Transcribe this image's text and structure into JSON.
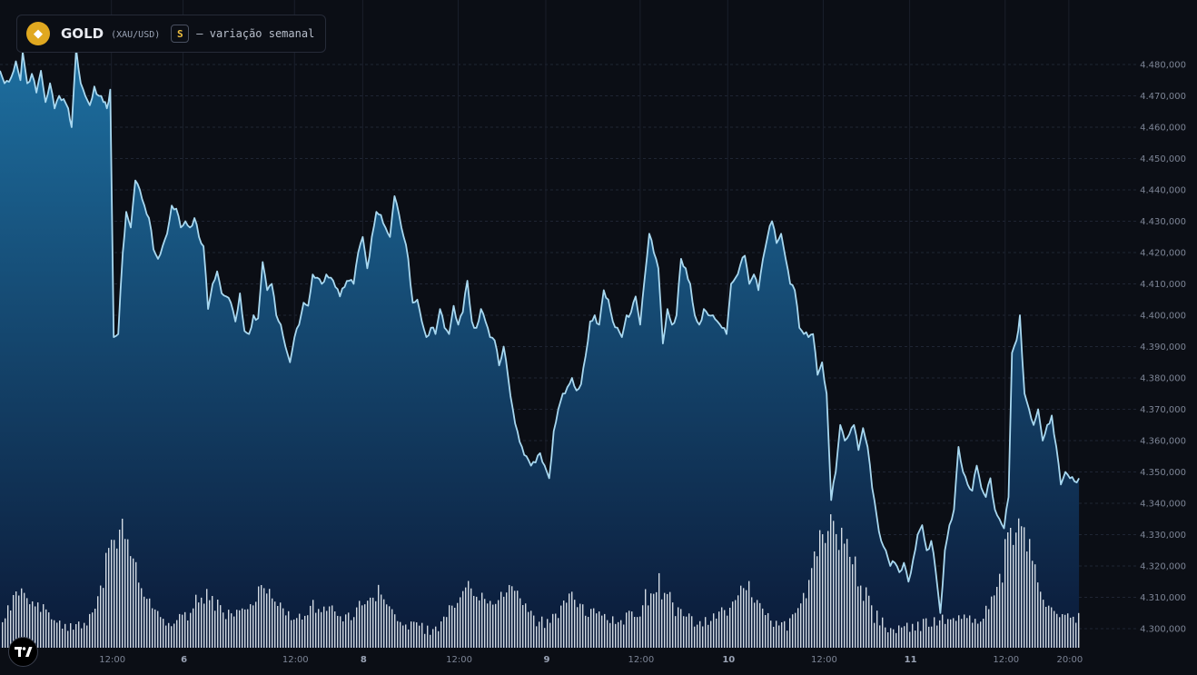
{
  "header": {
    "symbol": "GOLD",
    "pair": "(XAU/USD)",
    "badge": "S",
    "description": "— variação semanal",
    "coin_icon": "diamond-icon",
    "logo_icon": "tradingview-logo-icon"
  },
  "colors": {
    "background": "#0b0e15",
    "line": "#a8d8f0",
    "area_top": "#1d6fa0",
    "area_bottom": "#0b1a38",
    "volume": "#e8eef5",
    "coin": "#e0a820"
  },
  "chart_data": {
    "type": "area",
    "title": "",
    "xlabel": "",
    "ylabel": "",
    "ylim": [
      4295000,
      4485000
    ],
    "y_ticks": [
      4480000,
      4470000,
      4460000,
      4450000,
      4440000,
      4430000,
      4420000,
      4410000,
      4400000,
      4390000,
      4380000,
      4370000,
      4360000,
      4350000,
      4340000,
      4330000,
      4320000,
      4310000,
      4300000
    ],
    "y_tick_labels": [
      "4.480,000",
      "4.470,000",
      "4.460,000",
      "4.450,000",
      "4.440,000",
      "4.430,000",
      "4.420,000",
      "4.410,000",
      "4.400,000",
      "4.390,000",
      "4.380,000",
      "4.370,000",
      "4.360,000",
      "4.350,000",
      "4.340,000",
      "4.330,000",
      "4.320,000",
      "4.310,000",
      "4.300,000"
    ],
    "x_ticks": [
      {
        "label": "12:00",
        "t": 0.098,
        "bold": false
      },
      {
        "label": "6",
        "t": 0.161,
        "bold": true
      },
      {
        "label": "12:00",
        "t": 0.259,
        "bold": false
      },
      {
        "label": "8",
        "t": 0.319,
        "bold": true
      },
      {
        "label": "12:00",
        "t": 0.403,
        "bold": false
      },
      {
        "label": "9",
        "t": 0.48,
        "bold": true
      },
      {
        "label": "12:00",
        "t": 0.563,
        "bold": false
      },
      {
        "label": "10",
        "t": 0.64,
        "bold": true
      },
      {
        "label": "12:00",
        "t": 0.724,
        "bold": false
      },
      {
        "label": "11",
        "t": 0.8,
        "bold": true
      },
      {
        "label": "12:00",
        "t": 0.884,
        "bold": false
      },
      {
        "label": "20:00",
        "t": 0.94,
        "bold": false
      }
    ],
    "series": [
      {
        "name": "",
        "anchors": [
          [
            0.0,
            4478000
          ],
          [
            0.004,
            4474000
          ],
          [
            0.01,
            4476000
          ],
          [
            0.014,
            4481000
          ],
          [
            0.018,
            4475000
          ],
          [
            0.02,
            4484000
          ],
          [
            0.024,
            4474000
          ],
          [
            0.028,
            4477000
          ],
          [
            0.032,
            4471000
          ],
          [
            0.036,
            4478000
          ],
          [
            0.04,
            4468000
          ],
          [
            0.044,
            4474000
          ],
          [
            0.048,
            4466000
          ],
          [
            0.052,
            4470000
          ],
          [
            0.056,
            4469000
          ],
          [
            0.06,
            4466000
          ],
          [
            0.063,
            4460000
          ],
          [
            0.067,
            4485000
          ],
          [
            0.071,
            4474000
          ],
          [
            0.075,
            4470000
          ],
          [
            0.079,
            4467000
          ],
          [
            0.083,
            4473000
          ],
          [
            0.087,
            4470000
          ],
          [
            0.091,
            4468000
          ],
          [
            0.094,
            4466000
          ],
          [
            0.097,
            4472000
          ],
          [
            0.1,
            4393000
          ],
          [
            0.104,
            4394000
          ],
          [
            0.108,
            4420000
          ],
          [
            0.111,
            4433000
          ],
          [
            0.115,
            4428000
          ],
          [
            0.119,
            4443000
          ],
          [
            0.123,
            4440000
          ],
          [
            0.127,
            4435000
          ],
          [
            0.131,
            4431000
          ],
          [
            0.135,
            4421000
          ],
          [
            0.139,
            4418000
          ],
          [
            0.143,
            4422000
          ],
          [
            0.147,
            4426000
          ],
          [
            0.151,
            4435000
          ],
          [
            0.155,
            4434000
          ],
          [
            0.159,
            4428000
          ],
          [
            0.163,
            4430000
          ],
          [
            0.167,
            4428000
          ],
          [
            0.171,
            4431000
          ],
          [
            0.175,
            4425000
          ],
          [
            0.179,
            4422000
          ],
          [
            0.183,
            4402000
          ],
          [
            0.187,
            4410000
          ],
          [
            0.191,
            4414000
          ],
          [
            0.195,
            4407000
          ],
          [
            0.199,
            4406000
          ],
          [
            0.203,
            4404000
          ],
          [
            0.207,
            4398000
          ],
          [
            0.211,
            4407000
          ],
          [
            0.215,
            4395000
          ],
          [
            0.219,
            4394000
          ],
          [
            0.223,
            4400000
          ],
          [
            0.227,
            4399000
          ],
          [
            0.231,
            4417000
          ],
          [
            0.235,
            4408000
          ],
          [
            0.239,
            4410000
          ],
          [
            0.243,
            4400000
          ],
          [
            0.247,
            4397000
          ],
          [
            0.251,
            4390000
          ],
          [
            0.255,
            4385000
          ],
          [
            0.259,
            4393000
          ],
          [
            0.263,
            4397000
          ],
          [
            0.267,
            4404000
          ],
          [
            0.271,
            4403000
          ],
          [
            0.275,
            4413000
          ],
          [
            0.279,
            4412000
          ],
          [
            0.283,
            4410000
          ],
          [
            0.287,
            4413000
          ],
          [
            0.291,
            4412000
          ],
          [
            0.295,
            4409000
          ],
          [
            0.299,
            4406000
          ],
          [
            0.303,
            4409000
          ],
          [
            0.307,
            4411000
          ],
          [
            0.311,
            4410000
          ],
          [
            0.315,
            4420000
          ],
          [
            0.319,
            4425000
          ],
          [
            0.323,
            4415000
          ],
          [
            0.327,
            4425000
          ],
          [
            0.331,
            4433000
          ],
          [
            0.335,
            4432000
          ],
          [
            0.339,
            4428000
          ],
          [
            0.343,
            4425000
          ],
          [
            0.347,
            4438000
          ],
          [
            0.351,
            4432000
          ],
          [
            0.355,
            4425000
          ],
          [
            0.359,
            4418000
          ],
          [
            0.363,
            4404000
          ],
          [
            0.367,
            4405000
          ],
          [
            0.371,
            4398000
          ],
          [
            0.375,
            4393000
          ],
          [
            0.379,
            4396000
          ],
          [
            0.383,
            4394000
          ],
          [
            0.387,
            4402000
          ],
          [
            0.391,
            4396000
          ],
          [
            0.395,
            4394000
          ],
          [
            0.399,
            4403000
          ],
          [
            0.403,
            4397000
          ],
          [
            0.407,
            4401000
          ],
          [
            0.411,
            4411000
          ],
          [
            0.415,
            4398000
          ],
          [
            0.419,
            4396000
          ],
          [
            0.423,
            4402000
          ],
          [
            0.427,
            4398000
          ],
          [
            0.431,
            4393000
          ],
          [
            0.435,
            4392000
          ],
          [
            0.439,
            4384000
          ],
          [
            0.443,
            4390000
          ],
          [
            0.447,
            4380000
          ],
          [
            0.451,
            4370000
          ],
          [
            0.455,
            4363000
          ],
          [
            0.459,
            4358000
          ],
          [
            0.463,
            4355000
          ],
          [
            0.467,
            4352000
          ],
          [
            0.471,
            4353000
          ],
          [
            0.475,
            4356000
          ],
          [
            0.479,
            4352000
          ],
          [
            0.483,
            4348000
          ],
          [
            0.487,
            4363000
          ],
          [
            0.491,
            4370000
          ],
          [
            0.495,
            4375000
          ],
          [
            0.499,
            4377000
          ],
          [
            0.503,
            4380000
          ],
          [
            0.507,
            4376000
          ],
          [
            0.511,
            4378000
          ],
          [
            0.515,
            4387000
          ],
          [
            0.519,
            4398000
          ],
          [
            0.523,
            4400000
          ],
          [
            0.527,
            4397000
          ],
          [
            0.531,
            4408000
          ],
          [
            0.535,
            4405000
          ],
          [
            0.539,
            4398000
          ],
          [
            0.543,
            4396000
          ],
          [
            0.547,
            4393000
          ],
          [
            0.551,
            4400000
          ],
          [
            0.555,
            4401000
          ],
          [
            0.559,
            4406000
          ],
          [
            0.563,
            4397000
          ],
          [
            0.567,
            4412000
          ],
          [
            0.571,
            4426000
          ],
          [
            0.575,
            4420000
          ],
          [
            0.579,
            4415000
          ],
          [
            0.583,
            4391000
          ],
          [
            0.587,
            4402000
          ],
          [
            0.591,
            4397000
          ],
          [
            0.595,
            4400000
          ],
          [
            0.599,
            4418000
          ],
          [
            0.603,
            4415000
          ],
          [
            0.607,
            4410000
          ],
          [
            0.611,
            4400000
          ],
          [
            0.615,
            4397000
          ],
          [
            0.619,
            4402000
          ],
          [
            0.623,
            4400000
          ],
          [
            0.627,
            4400000
          ],
          [
            0.631,
            4398000
          ],
          [
            0.635,
            4396000
          ],
          [
            0.639,
            4394000
          ],
          [
            0.643,
            4410000
          ],
          [
            0.647,
            4412000
          ],
          [
            0.651,
            4416000
          ],
          [
            0.655,
            4419000
          ],
          [
            0.659,
            4410000
          ],
          [
            0.663,
            4413000
          ],
          [
            0.667,
            4408000
          ],
          [
            0.671,
            4418000
          ],
          [
            0.675,
            4425000
          ],
          [
            0.679,
            4430000
          ],
          [
            0.683,
            4423000
          ],
          [
            0.687,
            4426000
          ],
          [
            0.691,
            4418000
          ],
          [
            0.695,
            4410000
          ],
          [
            0.699,
            4408000
          ],
          [
            0.703,
            4396000
          ],
          [
            0.707,
            4394000
          ],
          [
            0.711,
            4393000
          ],
          [
            0.715,
            4394000
          ],
          [
            0.719,
            4381000
          ],
          [
            0.723,
            4385000
          ],
          [
            0.727,
            4375000
          ],
          [
            0.731,
            4341000
          ],
          [
            0.735,
            4350000
          ],
          [
            0.739,
            4365000
          ],
          [
            0.743,
            4360000
          ],
          [
            0.747,
            4362000
          ],
          [
            0.751,
            4365000
          ],
          [
            0.755,
            4357000
          ],
          [
            0.759,
            4364000
          ],
          [
            0.763,
            4358000
          ],
          [
            0.767,
            4345000
          ],
          [
            0.771,
            4336000
          ],
          [
            0.775,
            4328000
          ],
          [
            0.779,
            4325000
          ],
          [
            0.783,
            4320000
          ],
          [
            0.787,
            4321000
          ],
          [
            0.791,
            4318000
          ],
          [
            0.795,
            4321000
          ],
          [
            0.799,
            4315000
          ],
          [
            0.803,
            4322000
          ],
          [
            0.807,
            4330000
          ],
          [
            0.811,
            4333000
          ],
          [
            0.815,
            4325000
          ],
          [
            0.819,
            4328000
          ],
          [
            0.823,
            4318000
          ],
          [
            0.827,
            4305000
          ],
          [
            0.831,
            4325000
          ],
          [
            0.835,
            4333000
          ],
          [
            0.839,
            4338000
          ],
          [
            0.843,
            4358000
          ],
          [
            0.847,
            4350000
          ],
          [
            0.851,
            4346000
          ],
          [
            0.855,
            4344000
          ],
          [
            0.859,
            4352000
          ],
          [
            0.863,
            4345000
          ],
          [
            0.867,
            4342000
          ],
          [
            0.871,
            4348000
          ],
          [
            0.875,
            4338000
          ],
          [
            0.879,
            4335000
          ],
          [
            0.883,
            4332000
          ],
          [
            0.887,
            4342000
          ],
          [
            0.89,
            4388000
          ],
          [
            0.894,
            4392000
          ],
          [
            0.897,
            4400000
          ],
          [
            0.901,
            4375000
          ],
          [
            0.905,
            4370000
          ],
          [
            0.909,
            4365000
          ],
          [
            0.913,
            4370000
          ],
          [
            0.917,
            4360000
          ],
          [
            0.921,
            4365000
          ],
          [
            0.925,
            4368000
          ],
          [
            0.929,
            4358000
          ],
          [
            0.933,
            4346000
          ],
          [
            0.937,
            4350000
          ],
          [
            0.941,
            4348000
          ],
          [
            0.945,
            4347000
          ],
          [
            0.949,
            4348000
          ]
        ]
      }
    ]
  }
}
